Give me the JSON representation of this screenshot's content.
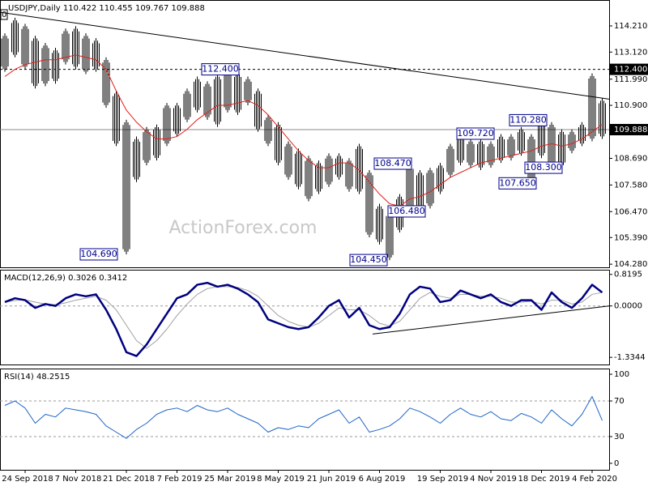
{
  "chart_data": [
    {
      "type": "ohlc",
      "title": "USDJPY,Daily  110.422 110.455 109.767 109.888",
      "corner_label": "0",
      "watermark": "ActionForex.com",
      "color": "#000000",
      "high": [
        113.9,
        114.55,
        114.3,
        113.8,
        113.5,
        113.3,
        114.1,
        114.2,
        113.9,
        113.7,
        112.9,
        111.5,
        110.3,
        109.6,
        110.0,
        110.1,
        111.0,
        111.0,
        111.6,
        112.1,
        111.9,
        112.2,
        112.4,
        112.3,
        112.1,
        111.6,
        110.5,
        110.2,
        109.4,
        109.1,
        108.8,
        108.6,
        108.9,
        108.9,
        108.7,
        109.3,
        108.2,
        106.8,
        106.5,
        107.2,
        108.47,
        108.2,
        108.3,
        108.5,
        109.3,
        109.72,
        109.5,
        109.5,
        109.4,
        109.7,
        109.7,
        110.0,
        109.7,
        110.28,
        110.2,
        109.9,
        109.9,
        110.2,
        112.23,
        111.2
      ],
      "low": [
        112.3,
        112.9,
        112.4,
        111.6,
        111.7,
        111.8,
        112.6,
        112.4,
        112.2,
        112.3,
        110.8,
        109.2,
        104.69,
        107.7,
        108.4,
        108.6,
        109.2,
        109.6,
        110.2,
        110.6,
        110.3,
        110.0,
        110.6,
        110.5,
        110.9,
        109.8,
        109.2,
        108.4,
        107.8,
        107.4,
        106.9,
        107.2,
        107.5,
        107.8,
        107.3,
        107.2,
        105.4,
        105.1,
        104.45,
        105.6,
        106.4,
        106.48,
        106.6,
        107.2,
        107.9,
        108.4,
        108.3,
        108.2,
        108.3,
        108.5,
        108.6,
        108.8,
        107.65,
        108.7,
        108.3,
        108.3,
        108.9,
        109.2,
        109.4,
        109.5
      ],
      "ma": {
        "color": "#e0201b",
        "values": [
          112.1,
          112.4,
          112.6,
          112.7,
          112.8,
          112.8,
          112.9,
          113.0,
          112.9,
          112.8,
          112.4,
          111.5,
          110.7,
          110.2,
          109.8,
          109.5,
          109.5,
          109.6,
          109.9,
          110.3,
          110.6,
          110.9,
          110.9,
          111.0,
          111.1,
          110.9,
          110.5,
          110.0,
          109.5,
          109.0,
          108.6,
          108.3,
          108.3,
          108.5,
          108.5,
          108.2,
          107.7,
          107.2,
          106.8,
          106.7,
          107.0,
          107.1,
          107.3,
          107.6,
          107.9,
          108.1,
          108.3,
          108.5,
          108.6,
          108.7,
          108.8,
          108.9,
          109.0,
          109.2,
          109.3,
          109.2,
          109.3,
          109.5,
          109.8,
          110.1
        ]
      },
      "trend_line": [
        114.78,
        111.16
      ],
      "price_lines": [
        {
          "value": 112.4,
          "label": "112.400",
          "style": "dashed"
        },
        {
          "value": 109.888,
          "label": "109.888",
          "style": "solid"
        }
      ],
      "annotations": [
        {
          "value": 112.4,
          "label": "112.400"
        },
        {
          "value": 104.69,
          "label": "104.690"
        },
        {
          "value": 104.45,
          "label": "104.450"
        },
        {
          "value": 108.47,
          "label": "108.470"
        },
        {
          "value": 106.48,
          "label": "106.480"
        },
        {
          "value": 109.72,
          "label": "109.720"
        },
        {
          "value": 110.28,
          "label": "110.280"
        },
        {
          "value": 108.3,
          "label": "108.300"
        },
        {
          "value": 107.65,
          "label": "107.650"
        }
      ],
      "ylim": [
        104.15,
        115.29
      ],
      "yticks": [
        {
          "value": 114.21,
          "label": "114.210"
        },
        {
          "value": 113.12,
          "label": "113.120"
        },
        {
          "value": 111.99,
          "label": "111.990"
        },
        {
          "value": 110.9,
          "label": "110.900"
        },
        {
          "value": 108.69,
          "label": "108.690"
        },
        {
          "value": 107.58,
          "label": "107.580"
        },
        {
          "value": 106.47,
          "label": "106.470"
        },
        {
          "value": 105.39,
          "label": "105.390"
        },
        {
          "value": 104.28,
          "label": "104.280"
        }
      ]
    },
    {
      "type": "line",
      "title": "MACD(12,26,9) 0.3026 0.3412",
      "series": [
        {
          "color": "#000080",
          "width": 2.5,
          "values": [
            0.1,
            0.2,
            0.15,
            -0.05,
            0.05,
            0.0,
            0.2,
            0.3,
            0.25,
            0.3,
            -0.1,
            -0.6,
            -1.2,
            -1.3,
            -1.0,
            -0.6,
            -0.2,
            0.2,
            0.3,
            0.55,
            0.6,
            0.5,
            0.55,
            0.45,
            0.3,
            0.1,
            -0.35,
            -0.45,
            -0.55,
            -0.6,
            -0.55,
            -0.3,
            0.0,
            0.15,
            -0.3,
            -0.05,
            -0.5,
            -0.6,
            -0.55,
            -0.2,
            0.3,
            0.5,
            0.45,
            0.1,
            0.15,
            0.4,
            0.3,
            0.2,
            0.3,
            0.1,
            0.0,
            0.15,
            0.15,
            -0.1,
            0.35,
            0.1,
            -0.05,
            0.2,
            0.55,
            0.35
          ]
        },
        {
          "color": "#a0a0a0",
          "width": 1,
          "values": [
            0.1,
            0.14,
            0.16,
            0.1,
            0.05,
            0.03,
            0.08,
            0.15,
            0.2,
            0.25,
            0.15,
            -0.1,
            -0.5,
            -0.9,
            -1.1,
            -0.9,
            -0.6,
            -0.25,
            0.05,
            0.3,
            0.45,
            0.5,
            0.5,
            0.48,
            0.4,
            0.25,
            0.0,
            -0.25,
            -0.4,
            -0.5,
            -0.55,
            -0.45,
            -0.25,
            -0.05,
            -0.1,
            -0.1,
            -0.25,
            -0.45,
            -0.52,
            -0.4,
            -0.1,
            0.2,
            0.35,
            0.25,
            0.2,
            0.3,
            0.3,
            0.25,
            0.25,
            0.2,
            0.1,
            0.1,
            0.12,
            0.05,
            0.15,
            0.15,
            0.05,
            0.1,
            0.3,
            0.35
          ]
        }
      ],
      "trend_line": [
        -0.73,
        0.0
      ],
      "levels": [
        0
      ],
      "ylim": [
        -1.52,
        0.94
      ],
      "yticks": [
        0.8195,
        {
          "value": 0,
          "label": "0.0000"
        },
        -1.3344
      ]
    },
    {
      "type": "line",
      "title": "RSI(14) 48.2515",
      "series": [
        {
          "color": "#1e64c8",
          "width": 1,
          "values": [
            65,
            70,
            62,
            45,
            55,
            52,
            62,
            60,
            58,
            55,
            42,
            35,
            28,
            38,
            45,
            55,
            60,
            62,
            58,
            65,
            60,
            58,
            62,
            55,
            50,
            45,
            35,
            40,
            38,
            42,
            40,
            50,
            55,
            60,
            45,
            52,
            35,
            38,
            42,
            50,
            62,
            58,
            52,
            45,
            55,
            62,
            55,
            52,
            58,
            50,
            48,
            56,
            52,
            45,
            60,
            50,
            42,
            55,
            75,
            48
          ]
        }
      ],
      "levels": [
        30,
        70
      ],
      "ylim": [
        -7.3,
        106.4
      ],
      "yticks": [
        100,
        70,
        30,
        0
      ],
      "categories": [
        null,
        null,
        "24 Sep 2018",
        null,
        null,
        null,
        null,
        "7 Nov 2018",
        null,
        null,
        null,
        null,
        "21 Dec 2018",
        null,
        null,
        null,
        null,
        "7 Feb 2019",
        null,
        null,
        null,
        null,
        "25 Mar 2019",
        null,
        null,
        null,
        null,
        "8 May 2019",
        null,
        null,
        null,
        null,
        "21 Jun 2019",
        null,
        null,
        null,
        null,
        "6 Aug 2019",
        null,
        null,
        null,
        null,
        null,
        "19 Sep 2019",
        null,
        null,
        null,
        null,
        "4 Nov 2019",
        null,
        null,
        null,
        null,
        "18 Dec 2019",
        null,
        null,
        null,
        null,
        "4 Feb 2020",
        null
      ]
    }
  ]
}
